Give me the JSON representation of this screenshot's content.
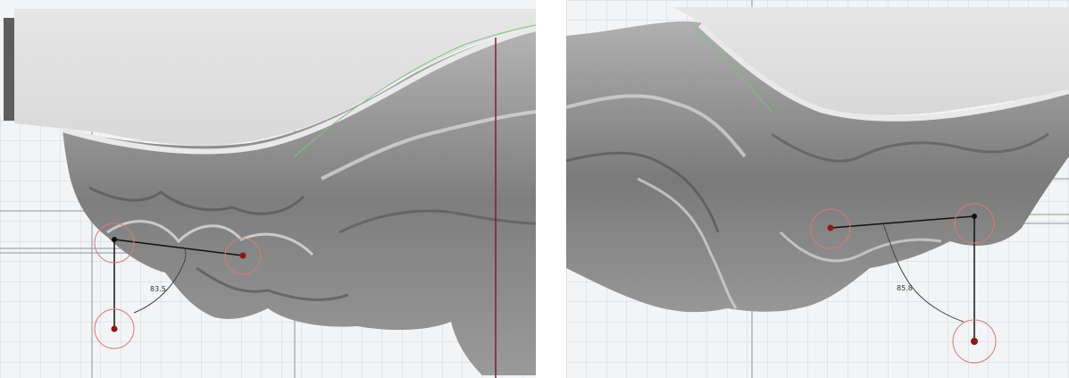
{
  "panels": [
    {
      "id": "left",
      "angle_label": "83.5"
    },
    {
      "id": "right",
      "angle_label": "85.8"
    }
  ],
  "colors": {
    "background": "#f3f4f5",
    "grid_minor": "#cfd6de",
    "grid_major": "#8a94a0",
    "tooth_base": "#8c8c8c",
    "tooth_dark": "#5a5a5a",
    "tooth_light": "#d9d9d9",
    "base_plate": "#dedede",
    "marker_red": "#8b1a1a",
    "circle_red": "#d77a7a",
    "measure_line": "#111111"
  }
}
